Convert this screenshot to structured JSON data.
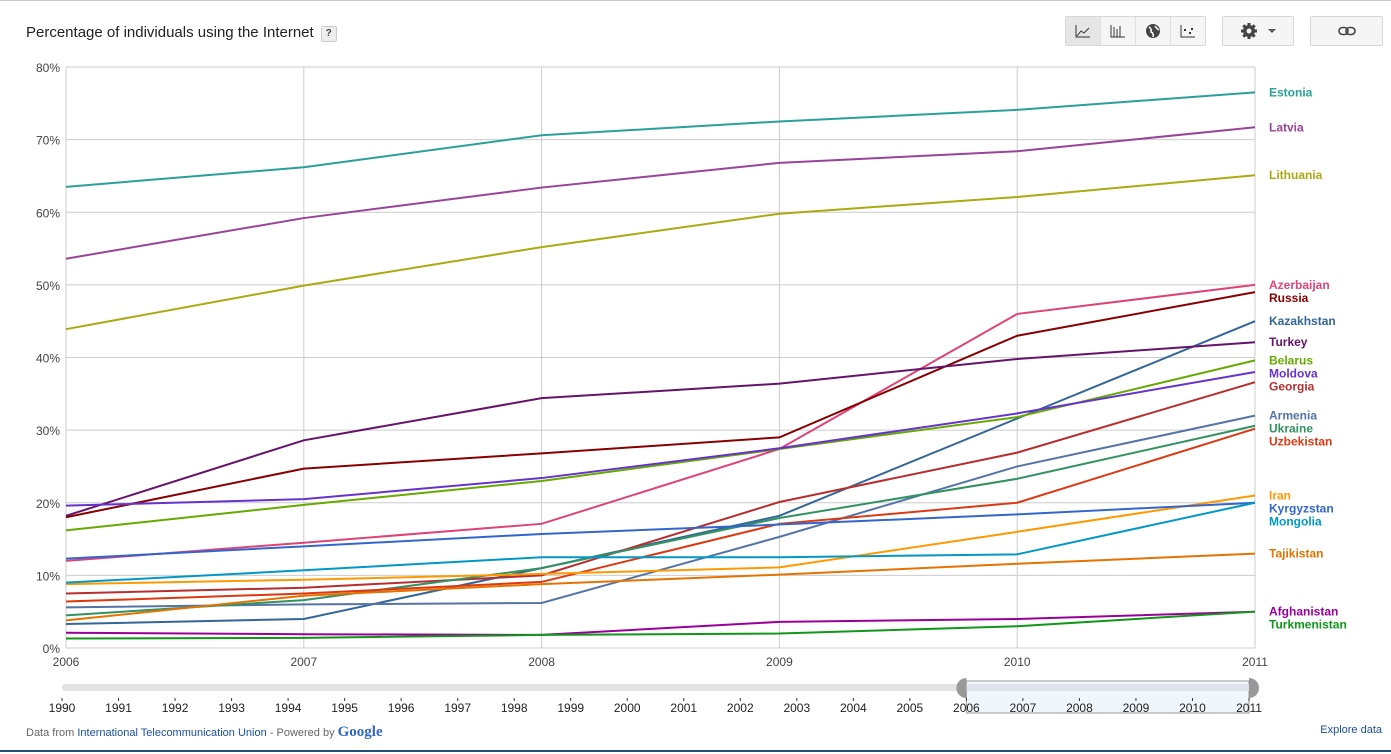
{
  "header": {
    "title": "Percentage of individuals using the Internet",
    "help_label": "?",
    "view_buttons": [
      {
        "icon": "line-chart-icon",
        "active": true
      },
      {
        "icon": "bar-chart-icon",
        "active": false
      },
      {
        "icon": "globe-map-icon",
        "active": false
      },
      {
        "icon": "scatter-chart-icon",
        "active": false
      }
    ],
    "settings_icon": "gear-icon",
    "link_icon": "link-icon"
  },
  "footer": {
    "prefix": "Data from ",
    "source": "International Telecommunication Union",
    "powered": " - Powered by ",
    "google": "Google",
    "explore": "Explore data"
  },
  "timeline": {
    "years": [
      "1990",
      "1991",
      "1992",
      "1993",
      "1994",
      "1995",
      "1996",
      "1997",
      "1998",
      "1999",
      "2000",
      "2001",
      "2002",
      "2003",
      "2004",
      "2005",
      "2006",
      "2007",
      "2008",
      "2009",
      "2010",
      "2011"
    ],
    "selected_start": "2006",
    "selected_end": "2011"
  },
  "chart_data": {
    "type": "line",
    "title": "Percentage of individuals using the Internet",
    "xlabel": "",
    "ylabel": "",
    "x": [
      2006,
      2007,
      2008,
      2009,
      2010,
      2011
    ],
    "x_tick_labels": [
      "2006",
      "2007",
      "2008",
      "2009",
      "2010",
      "2011"
    ],
    "ylim": [
      0,
      80
    ],
    "y_ticks": [
      0,
      10,
      20,
      30,
      40,
      50,
      60,
      70,
      80
    ],
    "y_tick_labels": [
      "0%",
      "10%",
      "20%",
      "30%",
      "40%",
      "50%",
      "60%",
      "70%",
      "80%"
    ],
    "grid": true,
    "legend": "right (end-of-line labels)",
    "series": [
      {
        "name": "Estonia",
        "color": "#2aa198",
        "values": [
          63.5,
          66.2,
          70.6,
          72.5,
          74.1,
          76.5
        ]
      },
      {
        "name": "Latvia",
        "color": "#994499",
        "values": [
          53.6,
          59.2,
          63.4,
          66.8,
          68.4,
          71.7
        ]
      },
      {
        "name": "Lithuania",
        "color": "#aaaa11",
        "values": [
          43.9,
          49.9,
          55.2,
          59.8,
          62.1,
          65.1
        ]
      },
      {
        "name": "Azerbaijan",
        "color": "#dd4477",
        "values": [
          12.0,
          14.5,
          17.1,
          27.4,
          46.0,
          50.0
        ]
      },
      {
        "name": "Russia",
        "color": "#880000",
        "values": [
          18.0,
          24.7,
          26.8,
          29.0,
          43.0,
          49.0
        ]
      },
      {
        "name": "Kazakhstan",
        "color": "#336699",
        "values": [
          3.3,
          4.0,
          11.0,
          18.2,
          31.6,
          45.0
        ]
      },
      {
        "name": "Turkey",
        "color": "#66136b",
        "values": [
          18.2,
          28.6,
          34.4,
          36.4,
          39.8,
          42.1
        ]
      },
      {
        "name": "Belarus",
        "color": "#66aa00",
        "values": [
          16.2,
          19.7,
          23.0,
          27.4,
          31.8,
          39.6
        ]
      },
      {
        "name": "Moldova",
        "color": "#6633cc",
        "values": [
          19.6,
          20.5,
          23.4,
          27.5,
          32.3,
          38.0
        ]
      },
      {
        "name": "Georgia",
        "color": "#b82e2e",
        "values": [
          7.5,
          8.3,
          10.0,
          20.1,
          26.9,
          36.6
        ]
      },
      {
        "name": "Armenia",
        "color": "#5574a6",
        "values": [
          5.6,
          6.0,
          6.2,
          15.3,
          25.0,
          32.0
        ]
      },
      {
        "name": "Ukraine",
        "color": "#329262",
        "values": [
          4.5,
          6.6,
          11.0,
          17.9,
          23.3,
          30.6
        ]
      },
      {
        "name": "Uzbekistan",
        "color": "#dc3912",
        "values": [
          6.4,
          7.5,
          9.1,
          17.1,
          20.0,
          30.2
        ]
      },
      {
        "name": "Iran",
        "color": "#ff9900",
        "values": [
          8.8,
          9.4,
          10.2,
          11.1,
          16.0,
          21.0
        ]
      },
      {
        "name": "Kyrgyzstan",
        "color": "#3366cc",
        "values": [
          12.3,
          14.0,
          15.7,
          17.0,
          18.4,
          20.0
        ]
      },
      {
        "name": "Mongolia",
        "color": "#0099c6",
        "values": [
          9.0,
          10.7,
          12.5,
          12.5,
          12.9,
          20.0
        ]
      },
      {
        "name": "Tajikistan",
        "color": "#e67300",
        "values": [
          3.8,
          7.2,
          8.8,
          10.1,
          11.6,
          13.0
        ]
      },
      {
        "name": "Afghanistan",
        "color": "#990099",
        "values": [
          2.1,
          1.9,
          1.8,
          3.6,
          4.0,
          5.0
        ]
      },
      {
        "name": "Turkmenistan",
        "color": "#109618",
        "values": [
          1.3,
          1.4,
          1.8,
          2.0,
          3.0,
          5.0
        ]
      }
    ]
  }
}
